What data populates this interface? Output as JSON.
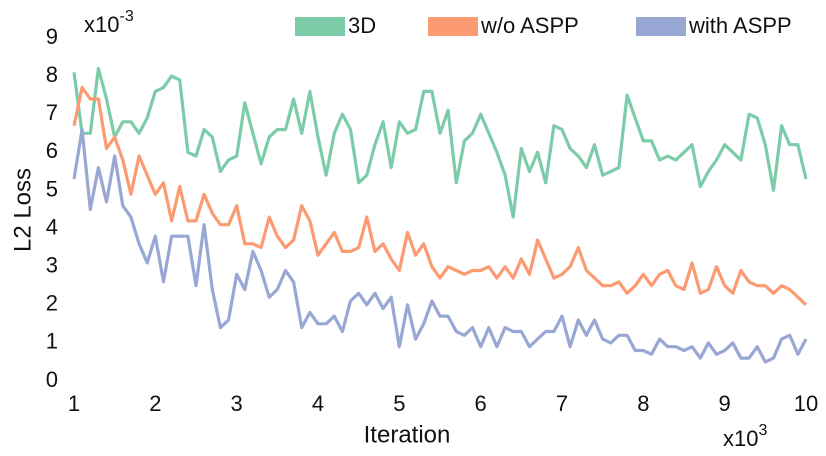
{
  "chart_data": {
    "type": "line",
    "xlabel": "Iteration",
    "ylabel": "L2 Loss",
    "x_multiplier": {
      "base": "x10",
      "exponent": "3"
    },
    "y_multiplier": {
      "base": "x10",
      "exponent": "-3"
    },
    "xlim": [
      1,
      10
    ],
    "xticks": [
      1,
      2,
      3,
      4,
      5,
      6,
      7,
      8,
      9,
      10
    ],
    "ylim": [
      0,
      9
    ],
    "yticks": [
      0,
      1,
      2,
      3,
      4,
      5,
      6,
      7,
      8,
      9
    ],
    "grid": false,
    "legend": "top",
    "x": [
      1.0,
      1.1,
      1.2,
      1.3,
      1.4,
      1.5,
      1.6,
      1.7,
      1.8,
      1.9,
      2.0,
      2.1,
      2.2,
      2.3,
      2.4,
      2.5,
      2.6,
      2.7,
      2.8,
      2.9,
      3.0,
      3.1,
      3.2,
      3.3,
      3.4,
      3.5,
      3.6,
      3.7,
      3.8,
      3.9,
      4.0,
      4.1,
      4.2,
      4.3,
      4.4,
      4.5,
      4.6,
      4.7,
      4.8,
      4.9,
      5.0,
      5.1,
      5.2,
      5.3,
      5.4,
      5.5,
      5.6,
      5.7,
      5.8,
      5.9,
      6.0,
      6.1,
      6.2,
      6.3,
      6.4,
      6.5,
      6.6,
      6.7,
      6.8,
      6.9,
      7.0,
      7.1,
      7.2,
      7.3,
      7.4,
      7.5,
      7.6,
      7.7,
      7.8,
      7.9,
      8.0,
      8.1,
      8.2,
      8.3,
      8.4,
      8.5,
      8.6,
      8.7,
      8.8,
      8.9,
      9.0,
      9.1,
      9.2,
      9.3,
      9.4,
      9.5,
      9.6,
      9.7,
      9.8,
      9.9,
      10.0
    ],
    "series": [
      {
        "name": "3D",
        "color": "#7ccba9",
        "values": [
          8.1,
          6.5,
          6.5,
          8.2,
          7.4,
          6.4,
          6.8,
          6.8,
          6.5,
          6.9,
          7.6,
          7.7,
          8.0,
          7.9,
          6.0,
          5.9,
          6.6,
          6.4,
          5.5,
          5.8,
          5.9,
          7.3,
          6.5,
          5.7,
          6.4,
          6.6,
          6.6,
          7.4,
          6.5,
          7.6,
          6.4,
          5.4,
          6.5,
          7.0,
          6.6,
          5.2,
          5.4,
          6.2,
          6.8,
          5.6,
          6.8,
          6.5,
          6.6,
          7.6,
          7.6,
          6.5,
          7.1,
          5.2,
          6.3,
          6.5,
          7.0,
          6.5,
          6.0,
          5.4,
          4.3,
          6.1,
          5.5,
          6.0,
          5.2,
          6.7,
          6.6,
          6.1,
          5.9,
          5.6,
          6.2,
          5.4,
          5.5,
          5.6,
          7.5,
          6.9,
          6.3,
          6.3,
          5.8,
          5.9,
          5.8,
          6.0,
          6.2,
          5.1,
          5.5,
          5.8,
          6.2,
          6.0,
          5.8,
          7.0,
          6.9,
          6.2,
          5.0,
          6.7,
          6.2,
          6.2,
          5.3
        ]
      },
      {
        "name": "w/o ASPP",
        "color": "#fc9a72",
        "values": [
          6.7,
          7.7,
          7.4,
          7.4,
          6.1,
          6.4,
          5.8,
          4.9,
          5.9,
          5.4,
          4.9,
          5.2,
          4.2,
          5.1,
          4.2,
          4.2,
          4.9,
          4.4,
          4.1,
          4.1,
          4.6,
          3.6,
          3.6,
          3.5,
          4.3,
          3.8,
          3.5,
          3.7,
          4.6,
          4.2,
          3.3,
          3.6,
          3.9,
          3.4,
          3.4,
          3.5,
          4.3,
          3.4,
          3.6,
          3.2,
          2.9,
          3.9,
          3.3,
          3.6,
          3.0,
          2.7,
          3.0,
          2.9,
          2.8,
          2.9,
          2.9,
          3.0,
          2.7,
          3.0,
          2.7,
          3.2,
          2.8,
          3.7,
          3.2,
          2.7,
          2.8,
          3.0,
          3.5,
          2.9,
          2.7,
          2.5,
          2.5,
          2.6,
          2.3,
          2.5,
          2.8,
          2.5,
          2.8,
          2.9,
          2.5,
          2.4,
          3.1,
          2.3,
          2.4,
          3.0,
          2.5,
          2.3,
          2.9,
          2.6,
          2.5,
          2.5,
          2.3,
          2.5,
          2.4,
          2.2,
          2.0
        ]
      },
      {
        "name": "with ASPP",
        "color": "#98a7d3",
        "values": [
          5.3,
          6.6,
          4.5,
          5.6,
          4.7,
          5.9,
          4.6,
          4.3,
          3.6,
          3.1,
          3.8,
          2.6,
          3.8,
          3.8,
          3.8,
          2.5,
          4.1,
          2.4,
          1.4,
          1.6,
          2.8,
          2.4,
          3.4,
          2.9,
          2.2,
          2.4,
          2.9,
          2.6,
          1.4,
          1.8,
          1.5,
          1.5,
          1.7,
          1.3,
          2.1,
          2.3,
          2.0,
          2.3,
          1.9,
          2.2,
          0.9,
          2.0,
          1.1,
          1.5,
          2.1,
          1.7,
          1.7,
          1.3,
          1.2,
          1.4,
          0.9,
          1.4,
          0.9,
          1.4,
          1.3,
          1.3,
          0.9,
          1.1,
          1.3,
          1.3,
          1.7,
          0.9,
          1.6,
          1.2,
          1.6,
          1.1,
          1.0,
          1.2,
          1.2,
          0.8,
          0.8,
          0.7,
          1.1,
          0.9,
          0.9,
          0.8,
          0.9,
          0.6,
          1.0,
          0.7,
          0.8,
          1.0,
          0.6,
          0.6,
          0.9,
          0.5,
          0.6,
          1.1,
          1.2,
          0.7,
          1.1
        ]
      }
    ]
  }
}
